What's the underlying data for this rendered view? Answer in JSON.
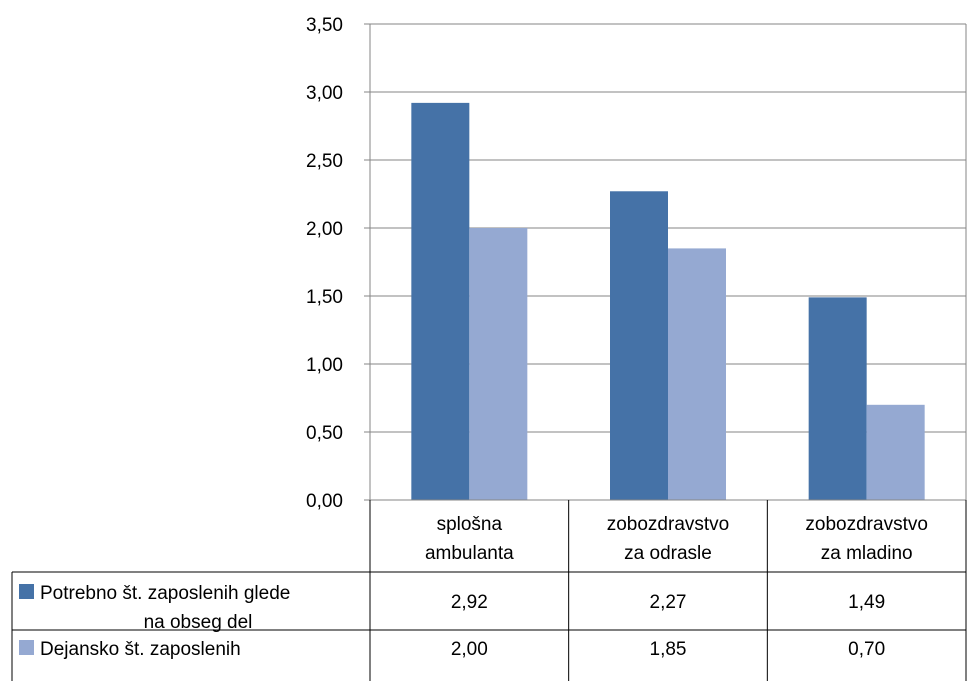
{
  "chart_data": {
    "type": "bar",
    "categories": [
      [
        "splošna",
        "ambulanta"
      ],
      [
        "zobozdravstvo",
        "za odrasle"
      ],
      [
        "zobozdravstvo",
        "za mladino"
      ]
    ],
    "series": [
      {
        "name": [
          "Potrebno št. zaposlenih glede",
          "na obseg del"
        ],
        "color": "#4572A7",
        "values": [
          2.92,
          2.27,
          1.49
        ],
        "labels": [
          "2,92",
          "2,27",
          "1,49"
        ]
      },
      {
        "name": [
          "Dejansko št.  zaposlenih"
        ],
        "color": "#95A9D2",
        "values": [
          2.0,
          1.85,
          0.7
        ],
        "labels": [
          "2,00",
          "1,85",
          "0,70"
        ]
      }
    ],
    "ylim": [
      0,
      3.5
    ],
    "yticks": [
      "0,00",
      "0,50",
      "1,00",
      "1,50",
      "2,00",
      "2,50",
      "3,00",
      "3,50"
    ],
    "grid": true,
    "legend": "data-table-left"
  }
}
